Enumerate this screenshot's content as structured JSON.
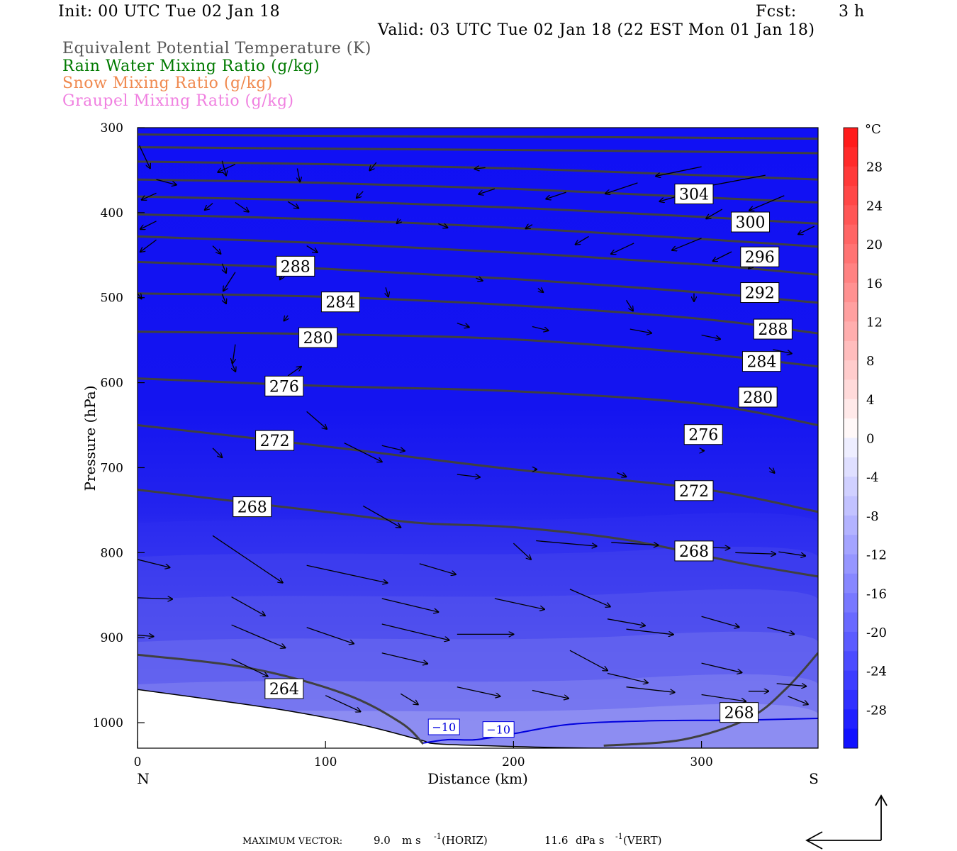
{
  "header": {
    "init": "Init: 00 UTC Tue 02 Jan 18",
    "fcst_label": "Fcst:",
    "fcst_value": "3 h",
    "valid": "Valid: 03 UTC Tue 02 Jan 18 (22 EST Mon 01 Jan 18)"
  },
  "legend": [
    {
      "label": "Equivalent Potential Temperature (K)",
      "color": "#555555"
    },
    {
      "label": "Rain Water Mixing Ratio (g/kg)",
      "color": "#007a00"
    },
    {
      "label": "Snow Mixing Ratio (g/kg)",
      "color": "#f08a50"
    },
    {
      "label": "Graupel Mixing Ratio (g/kg)",
      "color": "#f080e0"
    }
  ],
  "footer": {
    "max_vector": "MAXIMUM VECTOR:",
    "horiz_value": "9.0",
    "horiz_unit": "m s",
    "horiz_exp": "-1",
    "horiz_tag": "(HORIZ)",
    "vert_value": "11.6",
    "vert_unit": "dPa s",
    "vert_exp": "-1",
    "vert_tag": "(VERT)"
  },
  "chart_data": {
    "type": "cross-section",
    "xlabel": "Distance (km)",
    "ylabel": "Pressure (hPa)",
    "xlim": [
      0,
      362
    ],
    "ylim": [
      300,
      1030
    ],
    "y_scale": "linear",
    "xticks": [
      0,
      100,
      200,
      300
    ],
    "yticks": [
      300,
      400,
      500,
      600,
      700,
      800,
      900,
      1000
    ],
    "x_end_labels": {
      "left": "N",
      "right": "S"
    },
    "colorbar": {
      "unit": "°C",
      "tick_labels": [
        "28",
        "24",
        "20",
        "16",
        "12",
        "8",
        "4",
        "0",
        "-4",
        "-8",
        "-12",
        "-16",
        "-20",
        "-24",
        "-28"
      ],
      "min": -32,
      "max": 32,
      "step": 2
    },
    "theta_e_labels": [
      {
        "v": "304",
        "x": 296,
        "p": 378
      },
      {
        "v": "300",
        "x": 326,
        "p": 411
      },
      {
        "v": "296",
        "x": 331,
        "p": 452
      },
      {
        "v": "292",
        "x": 331,
        "p": 494
      },
      {
        "v": "288",
        "x": 338,
        "p": 537
      },
      {
        "v": "288",
        "x": 84,
        "p": 463
      },
      {
        "v": "284",
        "x": 108,
        "p": 505
      },
      {
        "v": "284",
        "x": 332,
        "p": 575
      },
      {
        "v": "280",
        "x": 96,
        "p": 547
      },
      {
        "v": "280",
        "x": 330,
        "p": 617
      },
      {
        "v": "276",
        "x": 78,
        "p": 604
      },
      {
        "v": "276",
        "x": 301,
        "p": 661
      },
      {
        "v": "272",
        "x": 73,
        "p": 668
      },
      {
        "v": "272",
        "x": 296,
        "p": 727
      },
      {
        "v": "268",
        "x": 61,
        "p": 746
      },
      {
        "v": "268",
        "x": 296,
        "p": 798
      },
      {
        "v": "268",
        "x": 320,
        "p": 988
      },
      {
        "v": "264",
        "x": 78,
        "p": 960
      }
    ],
    "temperature_labels": [
      {
        "v": "−10",
        "x": 163,
        "p": 1005
      },
      {
        "v": "−10",
        "x": 192,
        "p": 1008
      }
    ],
    "theta_e_lines": [
      [
        [
          0,
          308
        ],
        [
          120,
          310
        ],
        [
          240,
          311
        ],
        [
          362,
          313
        ]
      ],
      [
        [
          0,
          323
        ],
        [
          120,
          325
        ],
        [
          240,
          327
        ],
        [
          362,
          330
        ]
      ],
      [
        [
          0,
          340
        ],
        [
          100,
          343
        ],
        [
          200,
          348
        ],
        [
          300,
          356
        ],
        [
          362,
          361
        ]
      ],
      [
        [
          0,
          361
        ],
        [
          100,
          365
        ],
        [
          200,
          372
        ],
        [
          300,
          382
        ],
        [
          362,
          388
        ]
      ],
      [
        [
          0,
          381
        ],
        [
          100,
          386
        ],
        [
          200,
          394
        ],
        [
          300,
          405
        ],
        [
          362,
          413
        ]
      ],
      [
        [
          0,
          402
        ],
        [
          100,
          408
        ],
        [
          200,
          418
        ],
        [
          300,
          431
        ],
        [
          362,
          440
        ]
      ],
      [
        [
          0,
          428
        ],
        [
          100,
          436
        ],
        [
          200,
          447
        ],
        [
          300,
          461
        ],
        [
          362,
          473
        ]
      ],
      [
        [
          0,
          458
        ],
        [
          100,
          466
        ],
        [
          200,
          478
        ],
        [
          300,
          494
        ],
        [
          362,
          506
        ]
      ],
      [
        [
          0,
          495
        ],
        [
          100,
          499
        ],
        [
          200,
          509
        ],
        [
          300,
          525
        ],
        [
          362,
          542
        ]
      ],
      [
        [
          0,
          540
        ],
        [
          100,
          543
        ],
        [
          200,
          549
        ],
        [
          300,
          566
        ],
        [
          362,
          581
        ]
      ],
      [
        [
          0,
          595
        ],
        [
          100,
          604
        ],
        [
          200,
          610
        ],
        [
          300,
          625
        ],
        [
          362,
          650
        ]
      ],
      [
        [
          0,
          650
        ],
        [
          100,
          675
        ],
        [
          200,
          702
        ],
        [
          300,
          725
        ],
        [
          362,
          752
        ]
      ],
      [
        [
          0,
          726
        ],
        [
          100,
          752
        ],
        [
          150,
          765
        ],
        [
          200,
          770
        ],
        [
          260,
          785
        ],
        [
          320,
          812
        ],
        [
          362,
          828
        ]
      ],
      [
        [
          0,
          920
        ],
        [
          60,
          936
        ],
        [
          110,
          966
        ],
        [
          140,
          1000
        ],
        [
          152,
          1025
        ]
      ],
      [
        [
          248,
          1027
        ],
        [
          290,
          1020
        ],
        [
          325,
          995
        ],
        [
          345,
          960
        ],
        [
          362,
          918
        ]
      ]
    ],
    "ground_pressure": [
      [
        0,
        961
      ],
      [
        40,
        973
      ],
      [
        80,
        986
      ],
      [
        120,
        1003
      ],
      [
        150,
        1020
      ],
      [
        160,
        1025
      ],
      [
        200,
        1028
      ],
      [
        250,
        1030
      ],
      [
        362,
        1030
      ]
    ],
    "minus10_isotherm": [
      [
        152,
        1024
      ],
      [
        165,
        1020
      ],
      [
        180,
        1020
      ],
      [
        200,
        1013
      ],
      [
        230,
        1002
      ],
      [
        270,
        998
      ],
      [
        320,
        997
      ],
      [
        362,
        995
      ]
    ],
    "wind_vectors": [
      [
        1,
        321,
        8,
        17
      ],
      [
        10,
        361,
        15,
        4
      ],
      [
        10,
        432,
        -12,
        9
      ],
      [
        52,
        343,
        -13,
        6
      ],
      [
        52,
        388,
        10,
        7
      ],
      [
        52,
        470,
        -9,
        14
      ],
      [
        52,
        555,
        -2,
        14
      ],
      [
        80,
        387,
        8,
        5
      ],
      [
        80,
        463,
        -6,
        10
      ],
      [
        80,
        521,
        -3,
        4
      ],
      [
        80,
        592,
        10,
        -7
      ],
      [
        90,
        634,
        15,
        13
      ],
      [
        110,
        671,
        28,
        14
      ],
      [
        120,
        745,
        28,
        16
      ],
      [
        40,
        780,
        52,
        35
      ],
      [
        90,
        815,
        60,
        13
      ],
      [
        150,
        813,
        27,
        8
      ],
      [
        200,
        789,
        13,
        12
      ],
      [
        0,
        808,
        24,
        6
      ],
      [
        0,
        853,
        26,
        1
      ],
      [
        0,
        897,
        12,
        1
      ],
      [
        50,
        852,
        25,
        14
      ],
      [
        50,
        885,
        40,
        17
      ],
      [
        50,
        925,
        27,
        13
      ],
      [
        90,
        888,
        35,
        12
      ],
      [
        130,
        854,
        42,
        10
      ],
      [
        130,
        918,
        34,
        8
      ],
      [
        140,
        966,
        13,
        8
      ],
      [
        100,
        968,
        26,
        12
      ],
      [
        130,
        884,
        50,
        12
      ],
      [
        170,
        896,
        42,
        0
      ],
      [
        190,
        854,
        37,
        8
      ],
      [
        230,
        843,
        30,
        13
      ],
      [
        230,
        915,
        28,
        15
      ],
      [
        170,
        958,
        32,
        7
      ],
      [
        210,
        962,
        27,
        6
      ],
      [
        250,
        878,
        28,
        5
      ],
      [
        250,
        942,
        30,
        7
      ],
      [
        260,
        958,
        36,
        4
      ],
      [
        260,
        890,
        35,
        4
      ],
      [
        300,
        875,
        28,
        8
      ],
      [
        300,
        930,
        30,
        7
      ],
      [
        300,
        967,
        33,
        5
      ],
      [
        325,
        963,
        15,
        0
      ],
      [
        340,
        954,
        22,
        2
      ],
      [
        335,
        888,
        20,
        5
      ],
      [
        346,
        969,
        15,
        6
      ],
      [
        212,
        786,
        45,
        4
      ],
      [
        252,
        788,
        35,
        2
      ],
      [
        290,
        793,
        35,
        1
      ],
      [
        318,
        800,
        30,
        1
      ],
      [
        341,
        799,
        20,
        3
      ],
      [
        130,
        674,
        17,
        4
      ],
      [
        170,
        708,
        17,
        2
      ],
      [
        211,
        702,
        2,
        0
      ],
      [
        255,
        706,
        7,
        3
      ],
      [
        300,
        680,
        2,
        0
      ],
      [
        336,
        700,
        4,
        4
      ],
      [
        0,
        495,
        3,
        4
      ],
      [
        45,
        496,
        3,
        7
      ],
      [
        45,
        460,
        3,
        7
      ],
      [
        50,
        576,
        3,
        7
      ],
      [
        40,
        677,
        7,
        7
      ],
      [
        10,
        410,
        -12,
        6
      ],
      [
        90,
        439,
        8,
        5
      ],
      [
        40,
        389,
        -6,
        5
      ],
      [
        40,
        439,
        6,
        6
      ],
      [
        132,
        488,
        2,
        7
      ],
      [
        170,
        530,
        9,
        3
      ],
      [
        210,
        534,
        12,
        3
      ],
      [
        262,
        537,
        16,
        3
      ],
      [
        300,
        544,
        14,
        3
      ],
      [
        338,
        561,
        14,
        3
      ],
      [
        180,
        477,
        5,
        2
      ],
      [
        213,
        489,
        4,
        3
      ],
      [
        260,
        503,
        5,
        8
      ],
      [
        296,
        495,
        0,
        6
      ],
      [
        120,
        375,
        -5,
        5
      ],
      [
        140,
        408,
        -3,
        3
      ],
      [
        160,
        413,
        7,
        3
      ],
      [
        210,
        414,
        -5,
        3
      ],
      [
        240,
        428,
        -10,
        6
      ],
      [
        264,
        436,
        -17,
        8
      ],
      [
        300,
        430,
        -22,
        9
      ],
      [
        316,
        446,
        -14,
        7
      ],
      [
        311,
        396,
        -12,
        7
      ],
      [
        330,
        455,
        -7,
        7
      ],
      [
        190,
        372,
        -12,
        4
      ],
      [
        228,
        376,
        -15,
        5
      ],
      [
        266,
        365,
        -24,
        8
      ],
      [
        302,
        371,
        -34,
        10
      ],
      [
        300,
        346,
        -34,
        7
      ],
      [
        334,
        356,
        -48,
        9
      ],
      [
        344,
        380,
        -26,
        11
      ],
      [
        360,
        416,
        -12,
        6
      ],
      [
        10,
        377,
        -11,
        5
      ],
      [
        0,
        333,
        -9,
        7
      ],
      [
        45,
        339,
        3,
        11
      ],
      [
        85,
        348,
        2,
        10
      ],
      [
        127,
        341,
        -5,
        6
      ],
      [
        185,
        347,
        -8,
        1
      ]
    ]
  }
}
